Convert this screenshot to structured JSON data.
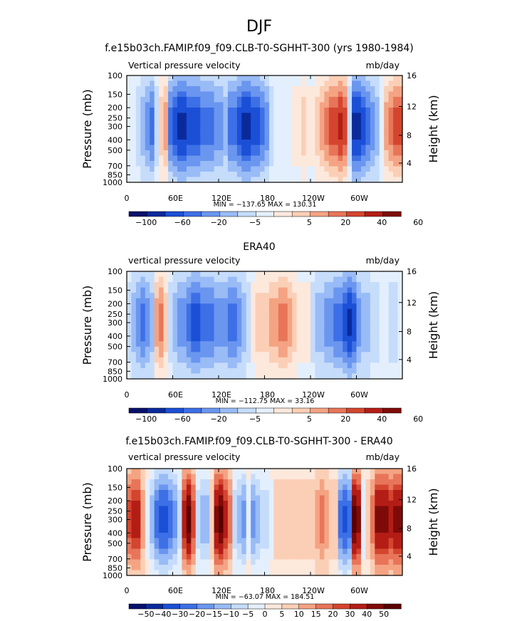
{
  "figure": {
    "title": "DJF"
  },
  "colors": {
    "panel_scale": [
      "#08116b",
      "#0a2a9c",
      "#1b4fd6",
      "#3d6fe6",
      "#6a96ef",
      "#99bbf6",
      "#c6dcfb",
      "#e4effd",
      "#fde8dc",
      "#fbcfb6",
      "#f4a383",
      "#e87559",
      "#d4452f",
      "#b41d16",
      "#7f0b08"
    ],
    "diff_scale": [
      "#08116b",
      "#0a2a9c",
      "#1b4fd6",
      "#3d6fe6",
      "#6a96ef",
      "#99bbf6",
      "#c6dcfb",
      "#e4effd",
      "#fde8dc",
      "#fbcfb6",
      "#f4a383",
      "#e87559",
      "#d4452f",
      "#b41d16",
      "#7f0b08",
      "#5a0000"
    ]
  },
  "chart_data": [
    {
      "type": "heatmap",
      "title": "f.e15b03ch.FAMIP.f09_f09.CLB-T0-SGHHT-300 (yrs 1980-1984)",
      "left_label": "Vertical pressure velocity",
      "right_label": "mb/day",
      "ylabel": "Pressure (mb)",
      "ylabel_right": "Height (km)",
      "x_ticks": [
        "0",
        "60E",
        "120E",
        "180",
        "120W",
        "60W"
      ],
      "y_ticks": [
        "100",
        "150",
        "200",
        "250",
        "300",
        "400",
        "500",
        "700",
        "850",
        "1000"
      ],
      "y_right_ticks": [
        "16",
        "12",
        "8",
        "4"
      ],
      "stats": "MIN = −137.65   MAX = 130.31",
      "colorbar_labels": [
        "−100",
        "−60",
        "−20",
        "−5",
        "5",
        "20",
        "40",
        "60"
      ],
      "profile": [
        0,
        0,
        -1,
        -2,
        -3,
        -4,
        -1,
        2,
        3,
        -4,
        -5,
        -6,
        -6,
        -5,
        -5,
        -5,
        -4,
        -4,
        -4,
        -3,
        -3,
        -2,
        -4,
        -4,
        -5,
        -6,
        -6,
        -5,
        -5,
        -4,
        -3,
        -1,
        0,
        0,
        0,
        0,
        1,
        1,
        2,
        1,
        1,
        2,
        3,
        4,
        5,
        5,
        6,
        5,
        -1,
        -6,
        -6,
        -5,
        -4,
        -3,
        -2,
        0,
        3,
        4,
        5,
        5
      ]
    },
    {
      "type": "heatmap",
      "title": "ERA40",
      "left_label": "vertical pressure velocity",
      "right_label": "mb/day",
      "ylabel": "Pressure (mb)",
      "ylabel_right": "Height (km)",
      "x_ticks": [
        "0",
        "60E",
        "120E",
        "180",
        "120W",
        "60W"
      ],
      "y_ticks": [
        "100",
        "150",
        "200",
        "250",
        "300",
        "400",
        "500",
        "700",
        "850",
        "1000"
      ],
      "y_right_ticks": [
        "16",
        "12",
        "8",
        "4"
      ],
      "stats": "MIN = −112.75   MAX =  33.16",
      "colorbar_labels": [
        "−100",
        "−60",
        "−20",
        "−5",
        "5",
        "20",
        "40",
        "60"
      ],
      "profile": [
        -1,
        -2,
        -3,
        -4,
        -3,
        -2,
        3,
        4,
        2,
        -1,
        -2,
        -3,
        -3,
        -4,
        -5,
        -5,
        -4,
        -4,
        -4,
        -3,
        -3,
        -3,
        -4,
        -4,
        -3,
        -2,
        -1,
        1,
        2,
        2,
        2,
        3,
        3,
        4,
        4,
        3,
        2,
        1,
        1,
        1,
        -1,
        -2,
        -2,
        -3,
        -3,
        -4,
        -4,
        -5,
        -6,
        -5,
        -3,
        -2,
        -2,
        -1,
        -1,
        0,
        0,
        -1,
        -1,
        0
      ]
    },
    {
      "type": "heatmap",
      "title": "f.e15b03ch.FAMIP.f09_f09.CLB-T0-SGHHT-300 - ERA40",
      "left_label": "vertical pressure velocity",
      "right_label": "mb/day",
      "ylabel": "Pressure (mb)",
      "ylabel_right": "Height (km)",
      "x_ticks": [
        "0",
        "60E",
        "120E",
        "180",
        "120W",
        "60W"
      ],
      "y_ticks": [
        "100",
        "150",
        "200",
        "250",
        "300",
        "400",
        "500",
        "700",
        "850",
        "1000"
      ],
      "y_right_ticks": [
        "16",
        "12",
        "8",
        "4"
      ],
      "stats": "MIN = −63.07   MAX = 184.51",
      "colorbar_labels": [
        "−50",
        "−40",
        "−30",
        "−20",
        "−15",
        "−10",
        "−5",
        "0",
        "5",
        "10",
        "15",
        "20",
        "30",
        "40",
        "50"
      ],
      "profile": [
        4,
        5,
        5,
        2,
        -1,
        -3,
        -5,
        -6,
        -6,
        -5,
        -4,
        -2,
        5,
        7,
        4,
        -2,
        -3,
        -3,
        1,
        6,
        7,
        5,
        3,
        -2,
        -3,
        -4,
        -1,
        -4,
        -3,
        -2,
        -2,
        -1,
        1,
        1,
        1,
        1,
        1,
        1,
        1,
        1,
        1,
        2,
        3,
        2,
        1,
        1,
        -5,
        -6,
        -5,
        7,
        6,
        -1,
        1,
        3,
        6,
        6,
        6,
        5,
        6,
        6
      ]
    }
  ]
}
